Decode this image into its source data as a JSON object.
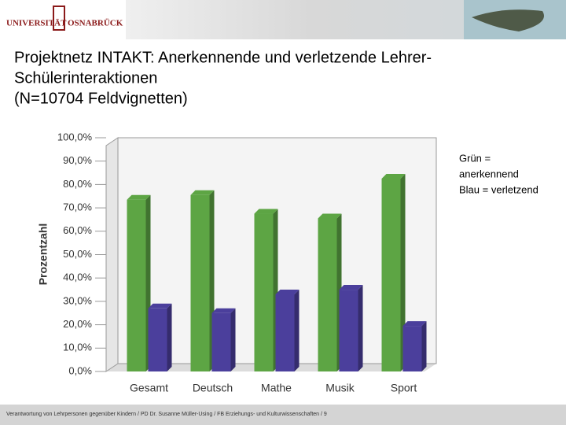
{
  "header": {
    "logo_left": "UNIVERSITÄT",
    "logo_right": "OSNABRÜCK"
  },
  "title_lines": [
    "Projektnetz INTAKT:  Anerkennende und verletzende Lehrer-",
    "Schülerinteraktionen",
    "(N=10704 Feldvignetten)"
  ],
  "footer": "Verantwortung von Lehrpersonen gegenüber Kindern / PD Dr. Susanne Müller-Using / FB Erziehungs- und Kulturwissenschaften / 9",
  "chart_data": {
    "type": "bar",
    "y_label": "Prozentzahl",
    "categories": [
      "Gesamt",
      "Deutsch",
      "Mathe",
      "Musik",
      "Sport"
    ],
    "series": [
      {
        "color": "#5da544",
        "values": [
          73.5,
          75.5,
          67.5,
          65.5,
          82.5
        ]
      },
      {
        "color": "#4b3f9c",
        "values": [
          27,
          25,
          33,
          35,
          19.5
        ]
      }
    ],
    "ylim": [
      0,
      100
    ],
    "yticks": [
      {
        "value": 0,
        "label": "0,0%"
      },
      {
        "value": 10,
        "label": "10,0%"
      },
      {
        "value": 20,
        "label": "20,0%"
      },
      {
        "value": 30,
        "label": "30,0%"
      },
      {
        "value": 40,
        "label": "40,0%"
      },
      {
        "value": 50,
        "label": "50,0%"
      },
      {
        "value": 60,
        "label": "60,0%"
      },
      {
        "value": 70,
        "label": "70,0%"
      },
      {
        "value": 80,
        "label": "80,0%"
      },
      {
        "value": 90,
        "label": "90,0%"
      },
      {
        "value": 100,
        "label": "100,0%"
      }
    ],
    "grid": false,
    "annotation": [
      "Grün =",
      "anerkennend",
      "Blau = verletzend"
    ]
  }
}
